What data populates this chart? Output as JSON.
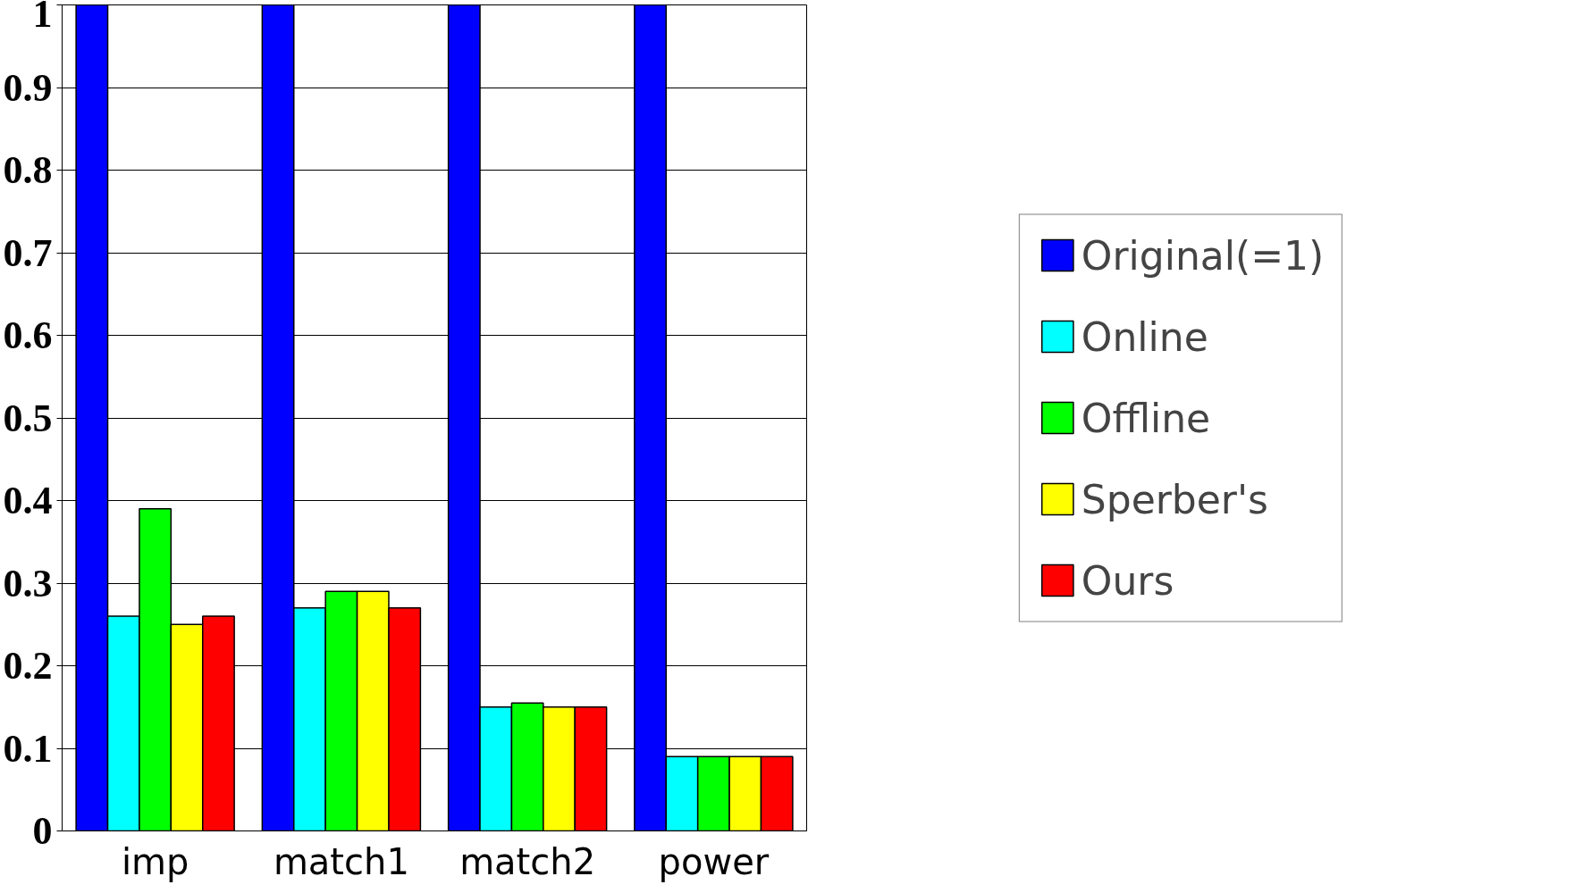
{
  "chart_data": {
    "type": "bar",
    "categories": [
      "imp",
      "match1",
      "match2",
      "power"
    ],
    "series": [
      {
        "name": "Original(=1)",
        "color": "#0000ff",
        "values": [
          1,
          1,
          1,
          1
        ]
      },
      {
        "name": "Online",
        "color": "#00ffff",
        "values": [
          0.26,
          0.27,
          0.15,
          0.09
        ]
      },
      {
        "name": "Offline",
        "color": "#00ff00",
        "values": [
          0.39,
          0.29,
          0.155,
          0.09
        ]
      },
      {
        "name": "Sperber's",
        "color": "#ffff00",
        "values": [
          0.25,
          0.29,
          0.15,
          0.09
        ]
      },
      {
        "name": "Ours",
        "color": "#ff0000",
        "values": [
          0.26,
          0.27,
          0.15,
          0.09
        ]
      }
    ],
    "ylim": [
      0,
      1
    ],
    "yticks": [
      0,
      0.1,
      0.2,
      0.3,
      0.4,
      0.5,
      0.6,
      0.7,
      0.8,
      0.9,
      1
    ],
    "grid": "y",
    "legend": "right"
  }
}
